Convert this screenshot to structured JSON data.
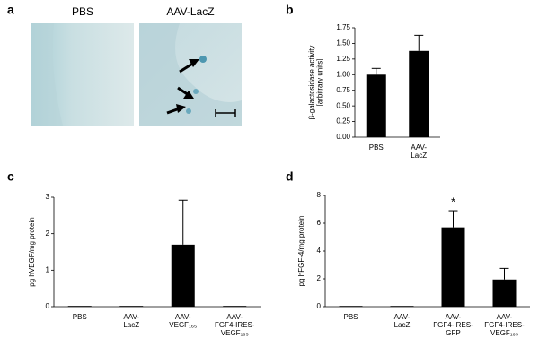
{
  "figure_a": {
    "panel": "a",
    "images": [
      {
        "title": "PBS"
      },
      {
        "title": "AAV-LacZ"
      }
    ]
  },
  "chart_data": [
    {
      "type": "bar",
      "panel": "b",
      "ylabel": "β-galactosidase activity\n[arbitrary units]",
      "categories": [
        "PBS",
        "AAV-\nLacZ"
      ],
      "values": [
        1.0,
        1.38
      ],
      "errors": [
        0.1,
        0.25
      ],
      "color": "#000000",
      "ylim": [
        0,
        1.75
      ],
      "yticks": [
        {
          "value": 0,
          "label": "0.00"
        },
        {
          "value": 0.25,
          "label": "0.25"
        },
        {
          "value": 0.5,
          "label": "0.50"
        },
        {
          "value": 0.75,
          "label": "0.75"
        },
        {
          "value": 1,
          "label": "1.00"
        },
        {
          "value": 1.25,
          "label": "1.25"
        },
        {
          "value": 1.5,
          "label": "1.50"
        },
        {
          "value": 1.75,
          "label": "1.75"
        }
      ]
    },
    {
      "type": "bar",
      "panel": "c",
      "ylabel": "pg hVEGF/mg protein",
      "categories": [
        "PBS",
        "AAV-\nLacZ",
        "AAV-\nVEGF₁₆₅",
        "AAV-\nFGF4-IRES-\nVEGF₁₆₅"
      ],
      "values": [
        0.02,
        0.02,
        1.7,
        0.02
      ],
      "errors": [
        null,
        null,
        1.22,
        null
      ],
      "color": "#000000",
      "ylim": [
        0,
        3
      ],
      "yticks": [
        0,
        1,
        2,
        3
      ]
    },
    {
      "type": "bar",
      "panel": "d",
      "ylabel": "pg hFGF-4/mg protein",
      "categories": [
        "PBS",
        "AAV-\nLacZ",
        "AAV-\nFGF4-IRES-\nGFP",
        "AAV-\nFGF4-IRES-\nVEGF₁₆₅"
      ],
      "values": [
        0.05,
        0.05,
        5.7,
        1.95
      ],
      "errors": [
        null,
        null,
        1.2,
        0.8
      ],
      "color": "#000000",
      "ylim": [
        0,
        8
      ],
      "yticks": [
        0,
        2,
        4,
        6,
        8
      ],
      "annotations": [
        {
          "text": "*"
        }
      ]
    }
  ]
}
